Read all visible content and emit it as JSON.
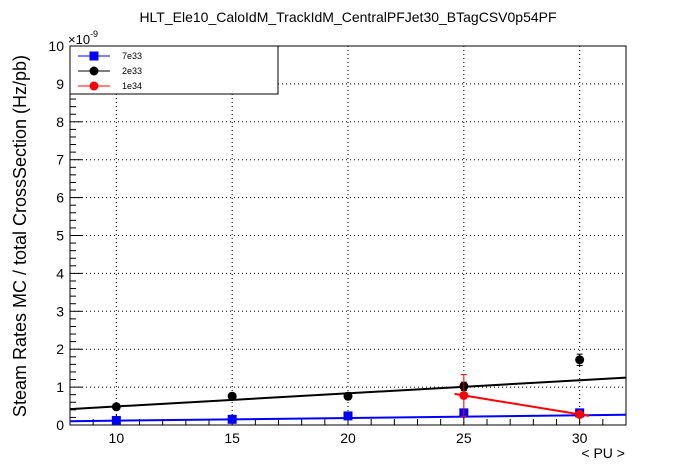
{
  "chart_data": {
    "type": "scatter",
    "title": "HLT_Ele10_CaloIdM_TrackIdM_CentralPFJet30_BTagCSV0p54PF",
    "xlabel": "< PU >",
    "ylabel": "Steam Rates MC / total CrossSection (Hz/pb)",
    "y_multiplier": "×10",
    "y_multiplier_exp": "-9",
    "xlim": [
      8,
      32
    ],
    "ylim": [
      0,
      10
    ],
    "x_ticks": [
      10,
      15,
      20,
      25,
      30
    ],
    "y_ticks": [
      0,
      1,
      2,
      3,
      4,
      5,
      6,
      7,
      8,
      9,
      10
    ],
    "grid": true,
    "legend_position": "top-left",
    "series": [
      {
        "name": "7e33",
        "color": "#0000ff",
        "marker": "square",
        "points": [
          {
            "x": 10,
            "y": 0.12,
            "err": 0.05
          },
          {
            "x": 15,
            "y": 0.15,
            "err": 0.05
          },
          {
            "x": 20,
            "y": 0.24,
            "err": 0.06
          },
          {
            "x": 25,
            "y": 0.32,
            "err": 0.07
          },
          {
            "x": 30,
            "y": 0.32,
            "err": 0.08
          }
        ],
        "fit": {
          "x": [
            8,
            32
          ],
          "y": [
            0.1,
            0.27
          ]
        }
      },
      {
        "name": "2e33",
        "color": "#000000",
        "marker": "circle",
        "points": [
          {
            "x": 10,
            "y": 0.48,
            "err": 0.06
          },
          {
            "x": 15,
            "y": 0.76,
            "err": 0.08
          },
          {
            "x": 20,
            "y": 0.76,
            "err": 0.09
          },
          {
            "x": 25,
            "y": 1.02,
            "err": 0.11
          },
          {
            "x": 30,
            "y": 1.72,
            "err": 0.15
          }
        ],
        "fit": {
          "x": [
            8,
            32
          ],
          "y": [
            0.42,
            1.25
          ]
        }
      },
      {
        "name": "1e34",
        "color": "#ff0000",
        "marker": "circle",
        "points": [
          {
            "x": 25,
            "y": 0.78,
            "err": 0.55
          },
          {
            "x": 30,
            "y": 0.28,
            "err": 0.08
          }
        ],
        "fit": {
          "x": [
            24.6,
            30.4
          ],
          "y": [
            0.82,
            0.24
          ]
        }
      }
    ]
  }
}
